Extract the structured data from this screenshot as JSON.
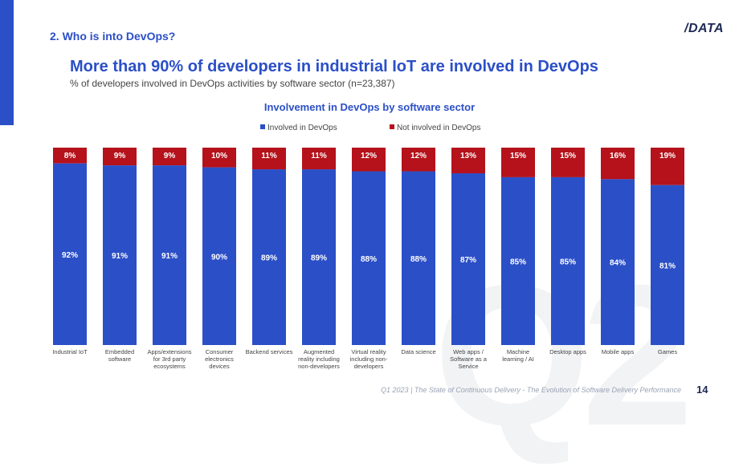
{
  "section_title": "2. Who is into DevOps?",
  "logo": "/DATA",
  "headline": "More than 90% of developers in industrial IoT are involved in DevOps",
  "subtitle": "% of developers involved in DevOps activities by software sector (n=23,387)",
  "watermark": "Q2",
  "footer": "Q1 2023 | The State of Continuous Delivery - The Evolution of Software Delivery Performance",
  "page_number": "14",
  "colors": {
    "involved": "#2b4fc7",
    "not_involved": "#b5121b",
    "accent": "#2b4fc7"
  },
  "chart_data": {
    "type": "bar",
    "stacked": true,
    "title": "Involvement in DevOps by software sector",
    "categories": [
      "Industrial IoT",
      "Embedded software",
      "Apps/extensions for 3rd party ecosystems",
      "Consumer electronics devices",
      "Backend services",
      "Augmented reality including non-developers",
      "Virtual reality including non-developers",
      "Data science",
      "Web apps / Software as a Service",
      "Machine learning / AI",
      "Desktop apps",
      "Mobile apps",
      "Games"
    ],
    "category_label_lines": [
      [
        "Industrial IoT"
      ],
      [
        "Embedded",
        "software"
      ],
      [
        "Apps/extensions",
        "for 3rd party",
        "ecosystems"
      ],
      [
        "Consumer",
        "electronics",
        "devices"
      ],
      [
        "Backend services"
      ],
      [
        "Augmented",
        "reality including",
        "non-developers"
      ],
      [
        "Virtual reality",
        "including non-",
        "developers"
      ],
      [
        "Data science"
      ],
      [
        "Web apps /",
        "Software as a",
        "Service"
      ],
      [
        "Machine",
        "learning / AI"
      ],
      [
        "Desktop apps"
      ],
      [
        "Mobile apps"
      ],
      [
        "Games"
      ]
    ],
    "series": [
      {
        "name": "Involved in DevOps",
        "values": [
          92,
          91,
          91,
          90,
          89,
          89,
          88,
          88,
          87,
          85,
          85,
          84,
          81
        ]
      },
      {
        "name": "Not involved in DevOps",
        "values": [
          8,
          9,
          9,
          10,
          11,
          11,
          12,
          12,
          13,
          15,
          15,
          16,
          19
        ]
      }
    ],
    "value_suffix": "%",
    "ylim": [
      0,
      100
    ],
    "legend_position": "top-center",
    "grid": false
  }
}
